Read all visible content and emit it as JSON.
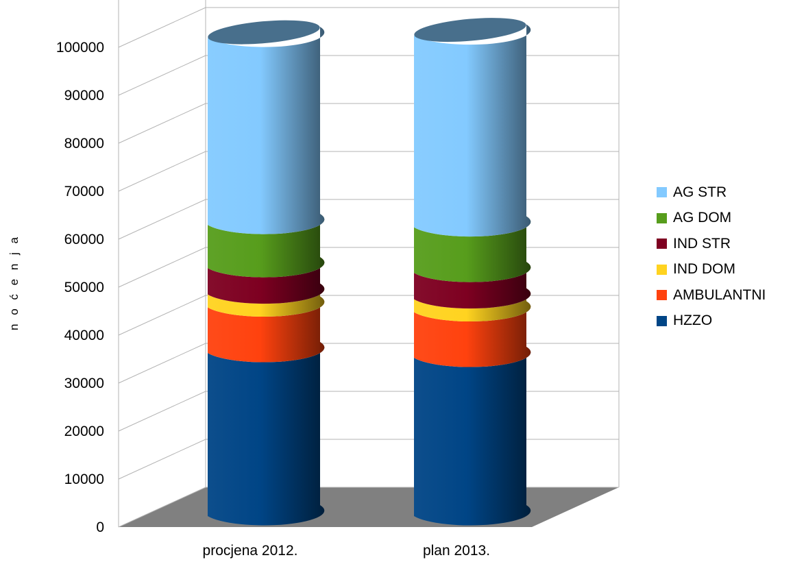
{
  "chart_data": {
    "type": "bar",
    "stacked": true,
    "style": "3d-cylinder",
    "categories": [
      "procjena 2012.",
      "plan 2013."
    ],
    "ylabel": "n o ć e n j a",
    "ylim": [
      0,
      100000
    ],
    "yticks": [
      "0",
      "10000",
      "20000",
      "30000",
      "40000",
      "50000",
      "60000",
      "70000",
      "80000",
      "90000",
      "100000"
    ],
    "grid": true,
    "legend_position": "right",
    "series": [
      {
        "name": "HZZO",
        "color": "#004586",
        "values": [
          34000,
          33000
        ]
      },
      {
        "name": "AMBULANTNI",
        "color": "#ff420e",
        "values": [
          9500,
          9500
        ]
      },
      {
        "name": "IND DOM",
        "color": "#ffd320",
        "values": [
          2700,
          2700
        ]
      },
      {
        "name": "IND STR",
        "color": "#7e0021",
        "values": [
          5500,
          5500
        ]
      },
      {
        "name": "AG DOM",
        "color": "#579d1c",
        "values": [
          9000,
          9500
        ]
      },
      {
        "name": "AG STR",
        "color": "#83caff",
        "values": [
          39000,
          40000
        ]
      }
    ]
  }
}
